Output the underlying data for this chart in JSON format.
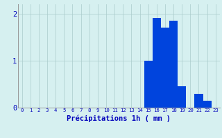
{
  "categories": [
    0,
    1,
    2,
    3,
    4,
    5,
    6,
    7,
    8,
    9,
    10,
    11,
    12,
    13,
    14,
    15,
    16,
    17,
    18,
    19,
    20,
    21,
    22,
    23
  ],
  "values": [
    0,
    0,
    0,
    0,
    0,
    0,
    0,
    0,
    0,
    0,
    0,
    0,
    0,
    0,
    0,
    1.0,
    1.9,
    1.7,
    1.85,
    0.45,
    0,
    0.3,
    0.15,
    0
  ],
  "bar_color": "#0044dd",
  "background_color": "#d6f0f0",
  "grid_color": "#aacccc",
  "xlabel": "Précipitations 1h ( mm )",
  "xlabel_color": "#0000bb",
  "tick_color": "#0000bb",
  "ylim": [
    0,
    2.2
  ],
  "yticks": [
    0,
    1,
    2
  ],
  "bar_width": 1.0
}
